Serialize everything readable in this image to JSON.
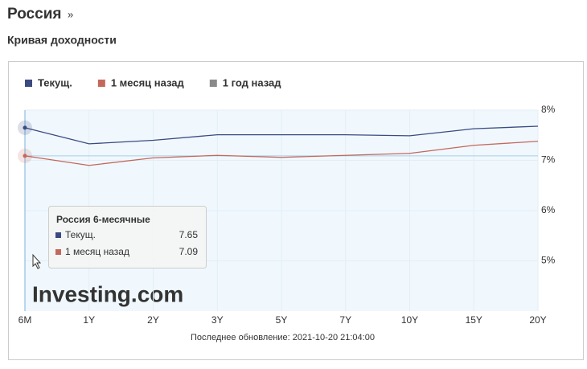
{
  "header": {
    "title": "Россия",
    "arrow": "»",
    "subtitle": "Кривая доходности"
  },
  "chart_data": {
    "type": "line",
    "categories": [
      "6M",
      "1Y",
      "2Y",
      "3Y",
      "5Y",
      "7Y",
      "10Y",
      "15Y",
      "20Y"
    ],
    "series": [
      {
        "name": "Текущ.",
        "color": "#3b4a80",
        "values": [
          7.65,
          7.33,
          7.4,
          7.51,
          7.51,
          7.51,
          7.49,
          7.63,
          7.68
        ]
      },
      {
        "name": "1 месяц назад",
        "color": "#c4685c",
        "values": [
          7.09,
          6.9,
          7.05,
          7.1,
          7.06,
          7.1,
          7.14,
          7.3,
          7.38
        ]
      },
      {
        "name": "1 год назад",
        "color": "#8a8a8a",
        "values": [
          null,
          null,
          null,
          null,
          null,
          null,
          null,
          null,
          null
        ]
      }
    ],
    "ylim": [
      4,
      8
    ],
    "yticks": [
      {
        "value": 5,
        "label": "5%"
      },
      {
        "value": 6,
        "label": "6%"
      },
      {
        "value": 7,
        "label": "7%"
      },
      {
        "value": 8,
        "label": "8%"
      }
    ],
    "grid": true,
    "tooltip": {
      "title": "Россия 6-месячные"
    },
    "watermark": "Investing.com"
  },
  "footer": "Последнее обновление: 2021-10-20 21:04:00"
}
